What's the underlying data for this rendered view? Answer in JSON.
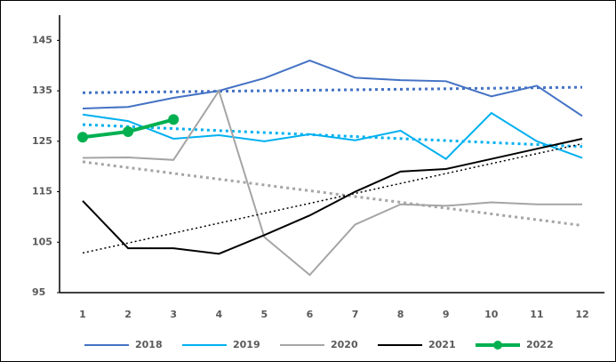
{
  "chart_data": {
    "type": "line",
    "categories": [
      "1",
      "2",
      "3",
      "4",
      "5",
      "6",
      "7",
      "8",
      "9",
      "10",
      "11",
      "12"
    ],
    "ylim": [
      95,
      150
    ],
    "yticks": [
      95,
      105,
      115,
      125,
      135,
      145
    ],
    "series": [
      {
        "name": "2018",
        "color": "#4472c4",
        "trendline": true,
        "values": [
          131.5,
          131.8,
          133.6,
          135,
          137.5,
          141,
          137.6,
          137.1,
          136.9,
          133.9,
          136,
          130
        ]
      },
      {
        "name": "2019",
        "color": "#00b0f0",
        "trendline": true,
        "values": [
          130.3,
          129,
          125.5,
          126.2,
          125,
          126.4,
          125.2,
          127.1,
          121.5,
          130.6,
          125,
          121.7
        ]
      },
      {
        "name": "2020",
        "color": "#a5a5a5",
        "trendline": true,
        "values": [
          121.7,
          121.8,
          121.3,
          135,
          106,
          98.5,
          108.5,
          112.5,
          112.2,
          112.9,
          112.5,
          112.5
        ]
      },
      {
        "name": "2021",
        "color": "#000000",
        "trendline": true,
        "values": [
          113.2,
          103.8,
          103.8,
          102.7,
          106.4,
          110.3,
          115,
          119,
          119.5,
          121.5,
          123.5,
          125.5
        ]
      },
      {
        "name": "2022",
        "color": "#00b050",
        "markers": true,
        "values": [
          125.8,
          126.9,
          129.3,
          null,
          null,
          null,
          null,
          null,
          null,
          null,
          null,
          null
        ]
      }
    ]
  }
}
